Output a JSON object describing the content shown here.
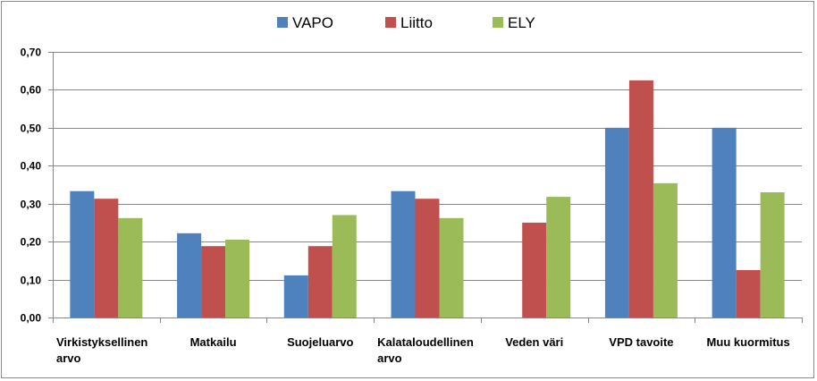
{
  "chart_data": {
    "type": "bar",
    "title": "",
    "xlabel": "",
    "ylabel": "",
    "ylim": [
      0,
      0.7
    ],
    "ytick_step": 0.1,
    "ytick_labels": [
      "0,00",
      "0,10",
      "0,20",
      "0,30",
      "0,40",
      "0,50",
      "0,60",
      "0,70"
    ],
    "grid": true,
    "legend_position": "top",
    "categories": [
      [
        "Virkistyksellinen",
        "arvo"
      ],
      [
        "Matkailu"
      ],
      [
        "Suojeluarvo"
      ],
      [
        "Kalataloudellinen",
        "arvo"
      ],
      [
        "Veden väri"
      ],
      [
        "VPD tavoite"
      ],
      [
        "Muu kuormitus"
      ]
    ],
    "series": [
      {
        "name": "VAPO",
        "color": "#4f81bd",
        "values": [
          0.333,
          0.222,
          0.111,
          0.333,
          0,
          0.5,
          0.5
        ]
      },
      {
        "name": "Liitto",
        "color": "#c0504d",
        "values": [
          0.313,
          0.188,
          0.188,
          0.313,
          0.25,
          0.625,
          0.125
        ]
      },
      {
        "name": "ELY",
        "color": "#9bbb59",
        "values": [
          0.262,
          0.205,
          0.27,
          0.262,
          0.318,
          0.354,
          0.33
        ]
      }
    ]
  }
}
